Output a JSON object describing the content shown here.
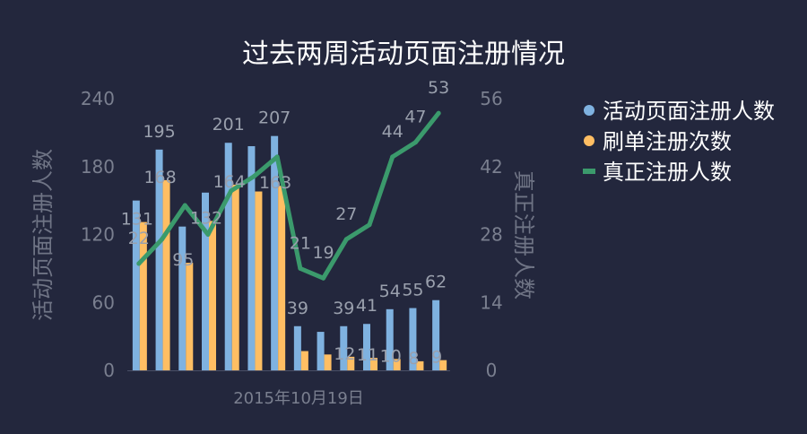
{
  "chart_data": {
    "type": "bar",
    "title": "过去两周活动页面注册情况",
    "xlabel": "2015年10月19日",
    "ylabel": "活动页面注册人数",
    "y2label": "真正注册人数",
    "ylim": [
      0,
      240
    ],
    "y2lim": [
      0,
      56
    ],
    "yticks": [
      0,
      60,
      120,
      180,
      240
    ],
    "y2ticks": [
      0,
      14,
      28,
      42,
      56
    ],
    "legend_position": "right",
    "series": [
      {
        "name": "活动页面注册人数",
        "type": "bar",
        "axis": "left",
        "color": "#7fb2e0",
        "values": [
          150,
          195,
          127,
          157,
          201,
          198,
          207,
          39,
          34,
          39,
          41,
          54,
          55,
          62
        ],
        "labels": [
          "",
          "195",
          "",
          "",
          "201",
          "",
          "207",
          "39",
          "",
          "39",
          "41",
          "54",
          "55",
          "62"
        ]
      },
      {
        "name": "刷单注册次数",
        "type": "bar",
        "axis": "left",
        "color": "#ffbe63",
        "values": [
          131,
          168,
          95,
          132,
          164,
          158,
          163,
          17,
          14,
          12,
          11,
          10,
          8,
          9
        ],
        "labels": [
          "131",
          "168",
          "95",
          "132",
          "164",
          "",
          "163",
          "",
          "",
          "12",
          "11",
          "10",
          "8",
          "9"
        ]
      },
      {
        "name": "真正注册人数",
        "type": "line",
        "axis": "right",
        "color": "#3b9a6c",
        "values": [
          22,
          27,
          34,
          28,
          37,
          40,
          44,
          21,
          19,
          27,
          30,
          44,
          47,
          53
        ],
        "labels": [
          "22",
          "",
          "",
          "",
          "",
          "",
          "",
          "21",
          "19",
          "27",
          "",
          "44",
          "47",
          "53"
        ]
      }
    ]
  }
}
